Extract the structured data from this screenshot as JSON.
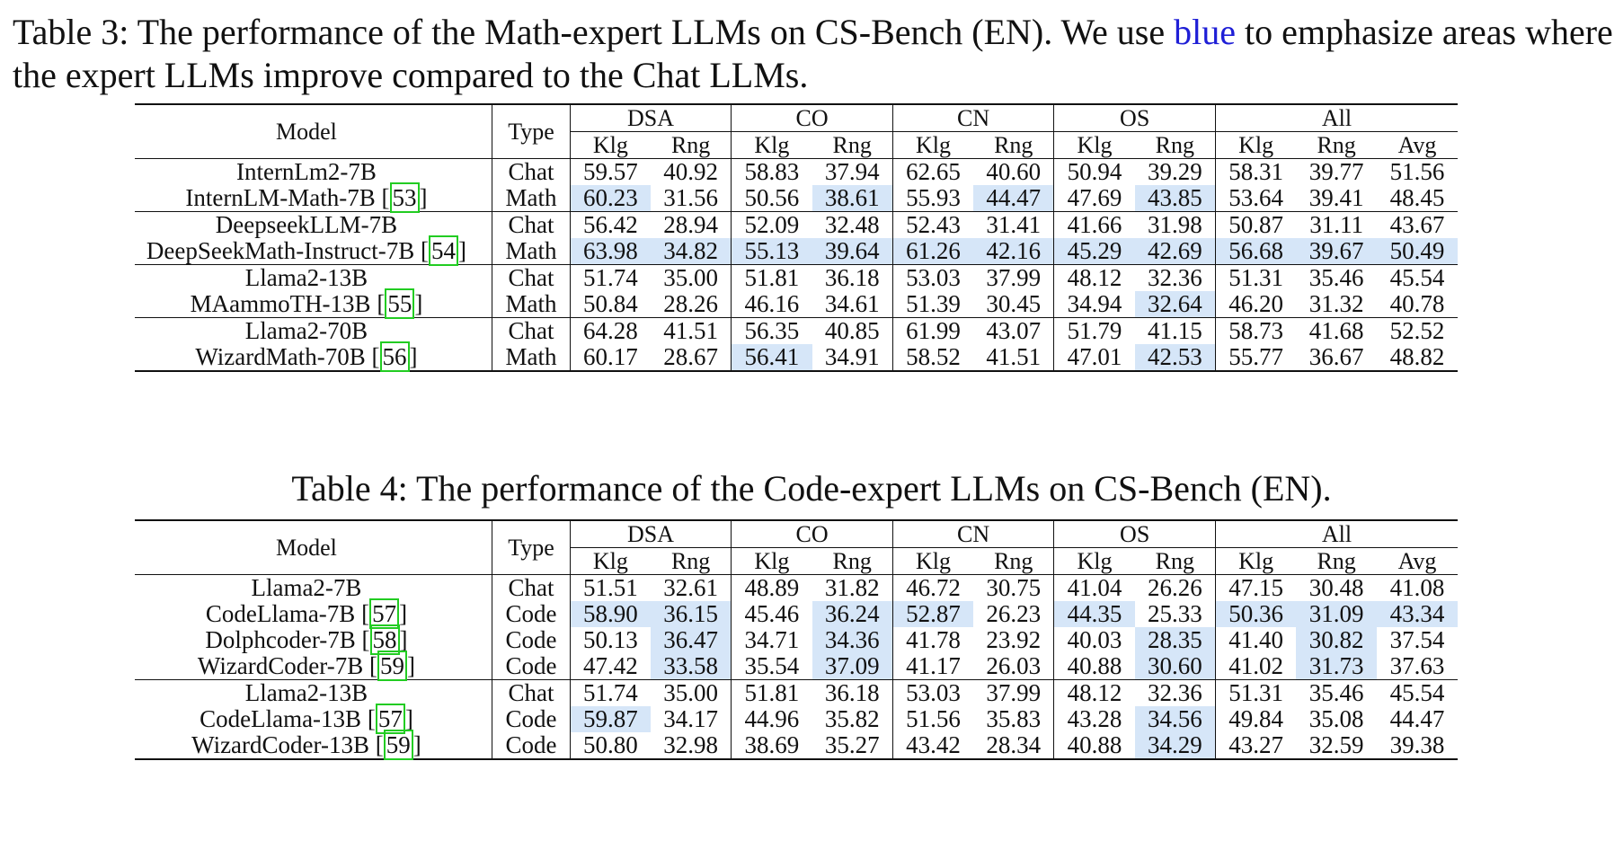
{
  "tables": [
    {
      "caption_prefix": "Table 3:",
      "caption_text_a": "The performance of the Math-expert LLMs on CS-Bench (EN). We use",
      "caption_highlight": "blue",
      "caption_text_b": "to emphasize areas where the expert LLMs improve compared to the Chat LLMs.",
      "headers": {
        "model": "Model",
        "type": "Type",
        "groups": [
          "DSA",
          "CO",
          "CN",
          "OS",
          "All"
        ],
        "sub": [
          "Klg",
          "Rng",
          "Klg",
          "Rng",
          "Klg",
          "Rng",
          "Klg",
          "Rng",
          "Klg",
          "Rng",
          "Avg"
        ]
      },
      "blocks": [
        [
          {
            "model": "InternLm2-7B",
            "cite": "",
            "type": "Chat",
            "values": [
              "59.57",
              "40.92",
              "58.83",
              "37.94",
              "62.65",
              "40.60",
              "50.94",
              "39.29",
              "58.31",
              "39.77",
              "51.56"
            ],
            "hl": []
          },
          {
            "model": "InternLM-Math-7B",
            "cite": "53",
            "type": "Math",
            "values": [
              "60.23",
              "31.56",
              "50.56",
              "38.61",
              "55.93",
              "44.47",
              "47.69",
              "43.85",
              "53.64",
              "39.41",
              "48.45"
            ],
            "hl": [
              0,
              3,
              5,
              7
            ]
          }
        ],
        [
          {
            "model": "DeepseekLLM-7B",
            "cite": "",
            "type": "Chat",
            "values": [
              "56.42",
              "28.94",
              "52.09",
              "32.48",
              "52.43",
              "31.41",
              "41.66",
              "31.98",
              "50.87",
              "31.11",
              "43.67"
            ],
            "hl": []
          },
          {
            "model": "DeepSeekMath-Instruct-7B",
            "cite": "54",
            "type": "Math",
            "values": [
              "63.98",
              "34.82",
              "55.13",
              "39.64",
              "61.26",
              "42.16",
              "45.29",
              "42.69",
              "56.68",
              "39.67",
              "50.49"
            ],
            "hl": [
              0,
              1,
              2,
              3,
              4,
              5,
              6,
              7,
              8,
              9,
              10
            ]
          }
        ],
        [
          {
            "model": "Llama2-13B",
            "cite": "",
            "type": "Chat",
            "values": [
              "51.74",
              "35.00",
              "51.81",
              "36.18",
              "53.03",
              "37.99",
              "48.12",
              "32.36",
              "51.31",
              "35.46",
              "45.54"
            ],
            "hl": []
          },
          {
            "model": "MAammoTH-13B",
            "cite": "55",
            "type": "Math",
            "values": [
              "50.84",
              "28.26",
              "46.16",
              "34.61",
              "51.39",
              "30.45",
              "34.94",
              "32.64",
              "46.20",
              "31.32",
              "40.78"
            ],
            "hl": [
              7
            ]
          }
        ],
        [
          {
            "model": "Llama2-70B",
            "cite": "",
            "type": "Chat",
            "values": [
              "64.28",
              "41.51",
              "56.35",
              "40.85",
              "61.99",
              "43.07",
              "51.79",
              "41.15",
              "58.73",
              "41.68",
              "52.52"
            ],
            "hl": []
          },
          {
            "model": "WizardMath-70B",
            "cite": "56",
            "type": "Math",
            "values": [
              "60.17",
              "28.67",
              "56.41",
              "34.91",
              "58.52",
              "41.51",
              "47.01",
              "42.53",
              "55.77",
              "36.67",
              "48.82"
            ],
            "hl": [
              2,
              7
            ]
          }
        ]
      ]
    },
    {
      "caption_prefix": "Table 4:",
      "caption_text_a": "The performance of the Code-expert LLMs on CS-Bench (EN).",
      "caption_highlight": "",
      "caption_text_b": "",
      "headers": {
        "model": "Model",
        "type": "Type",
        "groups": [
          "DSA",
          "CO",
          "CN",
          "OS",
          "All"
        ],
        "sub": [
          "Klg",
          "Rng",
          "Klg",
          "Rng",
          "Klg",
          "Rng",
          "Klg",
          "Rng",
          "Klg",
          "Rng",
          "Avg"
        ]
      },
      "blocks": [
        [
          {
            "model": "Llama2-7B",
            "cite": "",
            "type": "Chat",
            "values": [
              "51.51",
              "32.61",
              "48.89",
              "31.82",
              "46.72",
              "30.75",
              "41.04",
              "26.26",
              "47.15",
              "30.48",
              "41.08"
            ],
            "hl": []
          },
          {
            "model": "CodeLlama-7B",
            "cite": "57",
            "type": "Code",
            "values": [
              "58.90",
              "36.15",
              "45.46",
              "36.24",
              "52.87",
              "26.23",
              "44.35",
              "25.33",
              "50.36",
              "31.09",
              "43.34"
            ],
            "hl": [
              0,
              1,
              3,
              4,
              6,
              8,
              9,
              10
            ]
          },
          {
            "model": "Dolphcoder-7B",
            "cite": "58",
            "type": "Code",
            "values": [
              "50.13",
              "36.47",
              "34.71",
              "34.36",
              "41.78",
              "23.92",
              "40.03",
              "28.35",
              "41.40",
              "30.82",
              "37.54"
            ],
            "hl": [
              1,
              3,
              7,
              9
            ]
          },
          {
            "model": "WizardCoder-7B",
            "cite": "59",
            "type": "Code",
            "values": [
              "47.42",
              "33.58",
              "35.54",
              "37.09",
              "41.17",
              "26.03",
              "40.88",
              "30.60",
              "41.02",
              "31.73",
              "37.63"
            ],
            "hl": [
              1,
              3,
              7,
              9
            ]
          }
        ],
        [
          {
            "model": "Llama2-13B",
            "cite": "",
            "type": "Chat",
            "values": [
              "51.74",
              "35.00",
              "51.81",
              "36.18",
              "53.03",
              "37.99",
              "48.12",
              "32.36",
              "51.31",
              "35.46",
              "45.54"
            ],
            "hl": []
          },
          {
            "model": "CodeLlama-13B",
            "cite": "57",
            "type": "Code",
            "values": [
              "59.87",
              "34.17",
              "44.96",
              "35.82",
              "51.56",
              "35.83",
              "43.28",
              "34.56",
              "49.84",
              "35.08",
              "44.47"
            ],
            "hl": [
              0,
              7
            ]
          },
          {
            "model": "WizardCoder-13B",
            "cite": "59",
            "type": "Code",
            "values": [
              "50.80",
              "32.98",
              "38.69",
              "35.27",
              "43.42",
              "28.34",
              "40.88",
              "34.29",
              "43.27",
              "32.59",
              "39.38"
            ],
            "hl": [
              7
            ]
          }
        ]
      ]
    }
  ]
}
